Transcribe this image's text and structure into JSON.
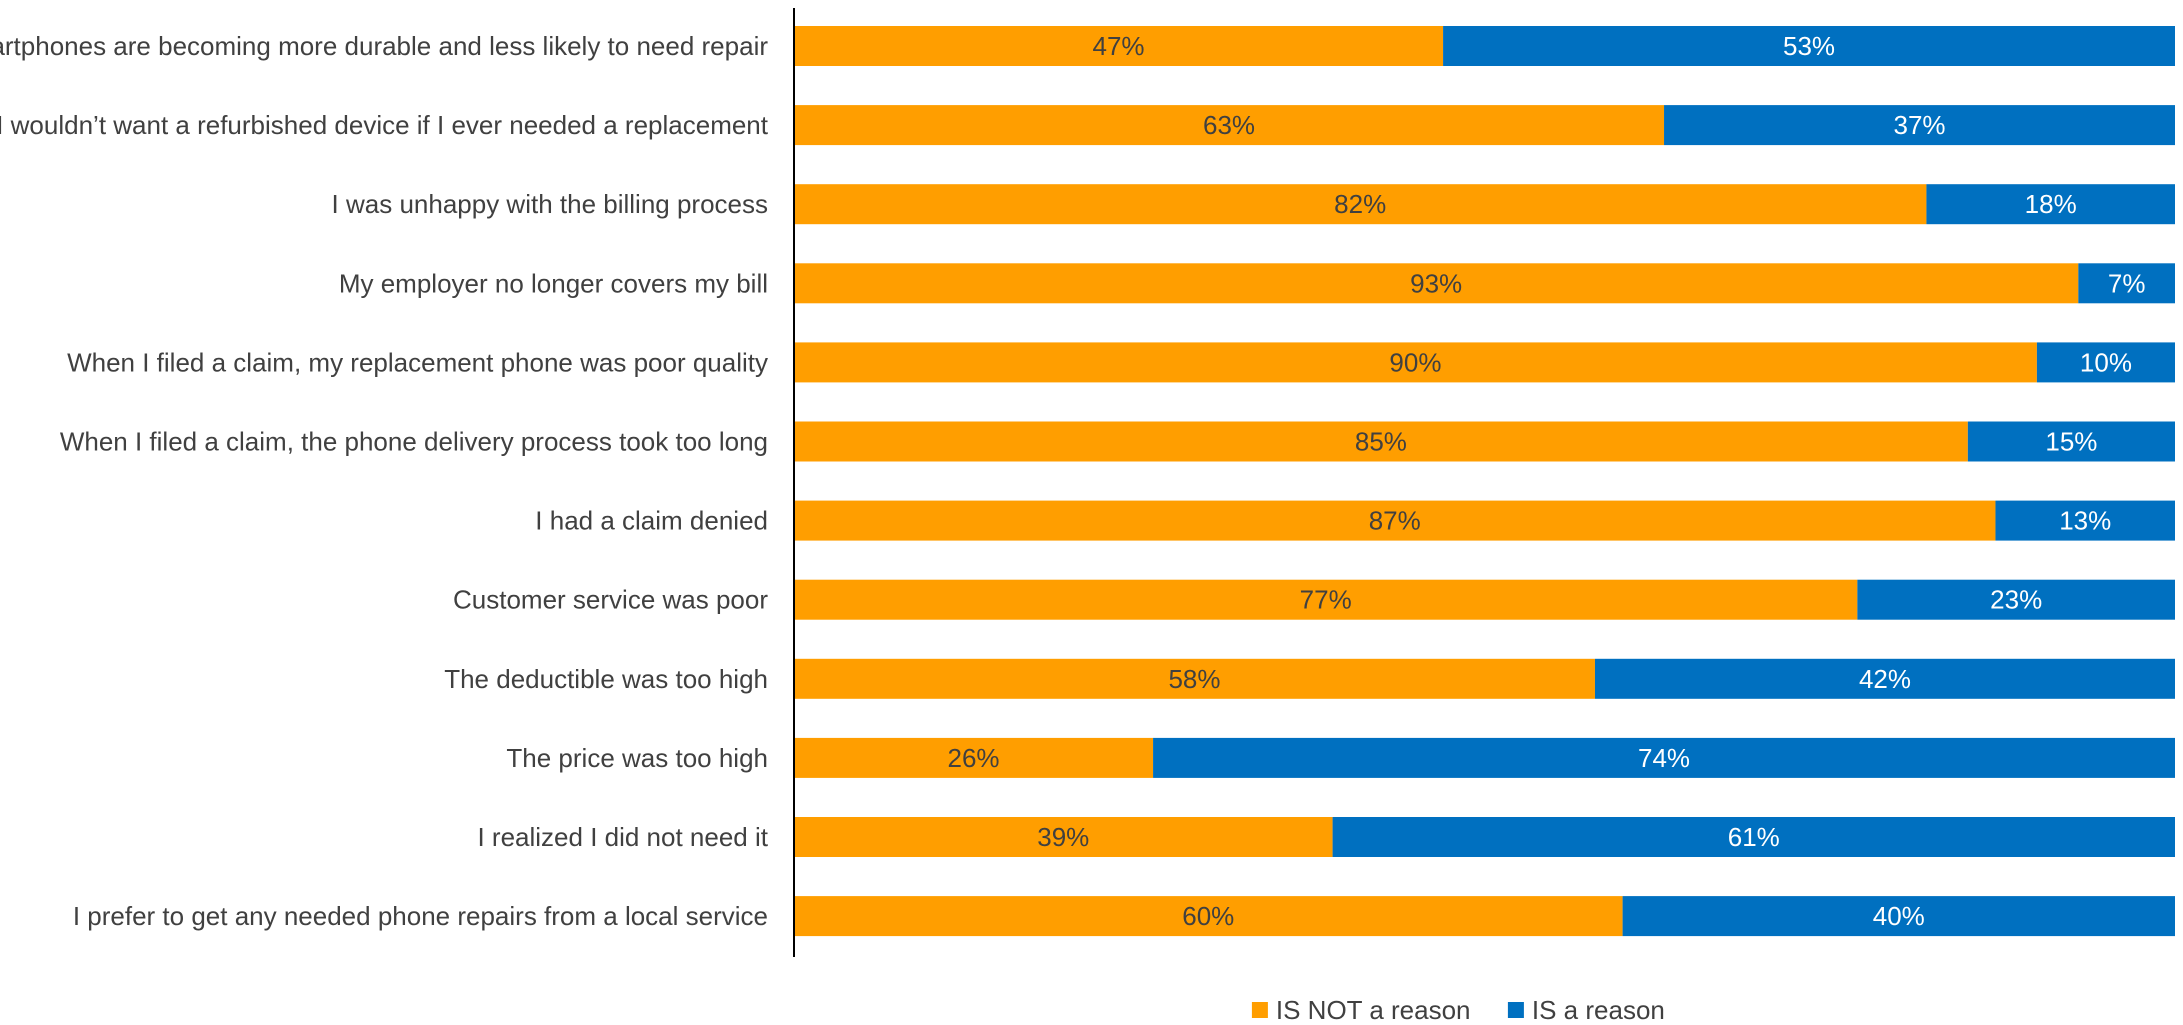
{
  "chart_data": {
    "type": "bar",
    "orientation": "horizontal",
    "stacked": true,
    "stack_mode": "percent",
    "title": "",
    "xlabel": "",
    "ylabel": "",
    "xlim": [
      0,
      100
    ],
    "grid": false,
    "legend_position": "bottom",
    "categories": [
      "Smartphones are becoming more durable and less likely to need repair",
      "I wouldn’t want a refurbished device if I ever needed a replacement",
      "I was unhappy with the billing process",
      "My employer no longer covers my bill",
      "When I filed a claim, my replacement phone was poor quality",
      "When I filed a claim, the phone delivery process took too long",
      "I had a claim denied",
      "Customer service was poor",
      "The deductible was too high",
      "The price was too high",
      "I realized I did not need it",
      "I prefer to get any needed phone repairs from a local service"
    ],
    "series": [
      {
        "name": "IS NOT a reason",
        "color": "#FF9E00",
        "label_color": "#404040",
        "values": [
          47,
          63,
          82,
          93,
          90,
          85,
          87,
          77,
          58,
          26,
          39,
          60
        ],
        "labels": [
          "47%",
          "63%",
          "82%",
          "93%",
          "90%",
          "85%",
          "87%",
          "77%",
          "58%",
          "26%",
          "39%",
          "60%"
        ]
      },
      {
        "name": "IS a reason",
        "color": "#0070C0",
        "label_color": "#ffffff",
        "values": [
          53,
          37,
          18,
          7,
          10,
          15,
          13,
          23,
          42,
          74,
          61,
          40
        ],
        "labels": [
          "53%",
          "37%",
          "18%",
          "7%",
          "10%",
          "15%",
          "13%",
          "23%",
          "42%",
          "74%",
          "61%",
          "40%"
        ]
      }
    ],
    "axis_color": "#000000"
  }
}
